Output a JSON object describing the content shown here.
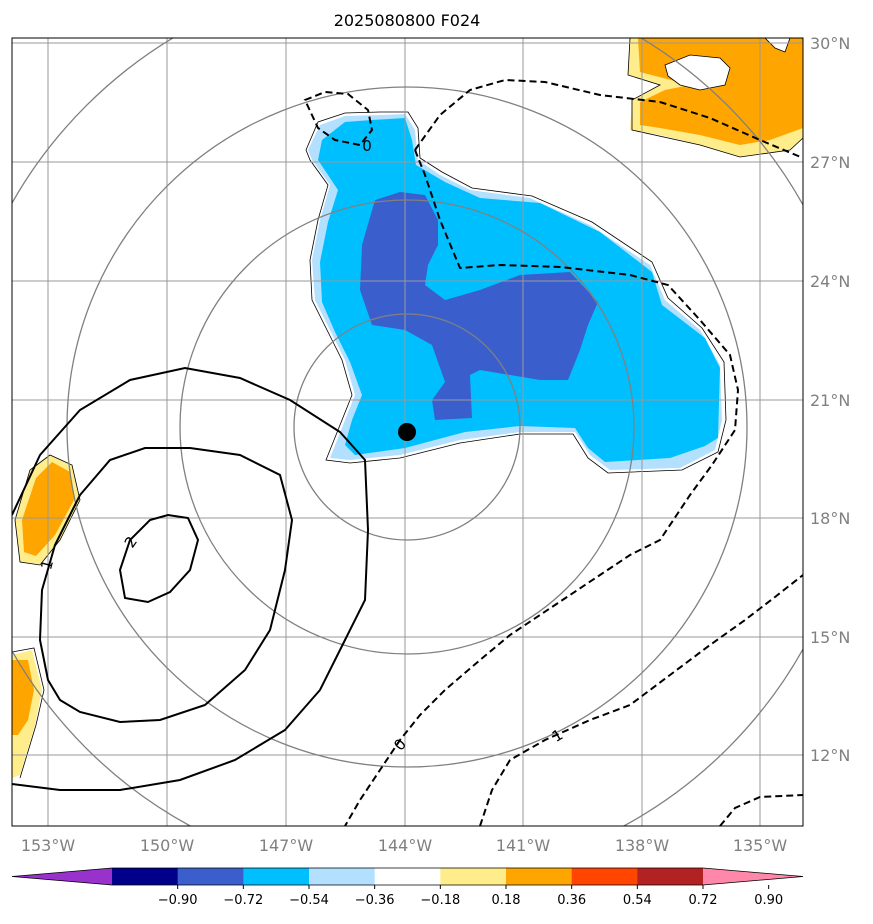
{
  "title": "2025080800 F024",
  "lon_labels": [
    "153°W",
    "150°W",
    "147°W",
    "144°W",
    "141°W",
    "138°W",
    "135°W"
  ],
  "lat_labels": [
    "30°N",
    "27°N",
    "24°N",
    "21°N",
    "18°N",
    "15°N",
    "12°N"
  ],
  "contour_labels": [
    "0",
    "2",
    "1",
    "0",
    "1"
  ],
  "colorbar": {
    "ticks": [
      "−0.90",
      "−0.72",
      "−0.54",
      "−0.36",
      "−0.18",
      "0.18",
      "0.36",
      "0.54",
      "0.72",
      "0.90"
    ],
    "colors": [
      "#9932cc",
      "#00008b",
      "#3a5fcd",
      "#00bfff",
      "#b3e0ff",
      "#ffffff",
      "#ffec8b",
      "#ffa500",
      "#ff4500",
      "#b22222",
      "#ff88aa"
    ]
  },
  "colors": {
    "strong_negative": "#3a5fcd",
    "negative": "#00bfff",
    "weak_negative": "#b3e0ff",
    "weak_positive": "#ffec8b",
    "positive": "#ffa500",
    "grid": "#999999",
    "range_rings": "#808080"
  }
}
